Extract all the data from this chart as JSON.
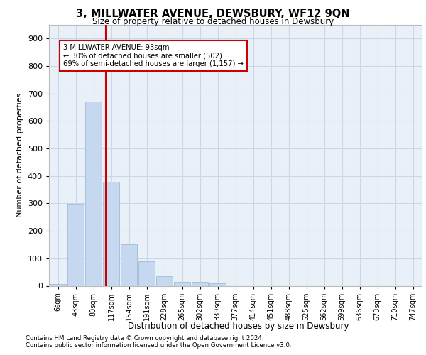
{
  "title": "3, MILLWATER AVENUE, DEWSBURY, WF12 9QN",
  "subtitle": "Size of property relative to detached houses in Dewsbury",
  "xlabel": "Distribution of detached houses by size in Dewsbury",
  "ylabel": "Number of detached properties",
  "bar_labels": [
    "6sqm",
    "43sqm",
    "80sqm",
    "117sqm",
    "154sqm",
    "191sqm",
    "228sqm",
    "265sqm",
    "302sqm",
    "339sqm",
    "377sqm",
    "414sqm",
    "451sqm",
    "488sqm",
    "525sqm",
    "562sqm",
    "599sqm",
    "636sqm",
    "673sqm",
    "710sqm",
    "747sqm"
  ],
  "bar_values": [
    7,
    295,
    670,
    380,
    150,
    88,
    35,
    13,
    13,
    10,
    0,
    0,
    0,
    0,
    0,
    0,
    0,
    0,
    0,
    0,
    0
  ],
  "bar_color": "#c5d8f0",
  "bar_edgecolor": "#a0bcd8",
  "grid_color": "#c8d8e8",
  "background_color": "#ffffff",
  "plot_bg_color": "#eaf0f8",
  "vline_x": 2.7,
  "vline_color": "#cc0000",
  "annotation_text": "3 MILLWATER AVENUE: 93sqm\n← 30% of detached houses are smaller (502)\n69% of semi-detached houses are larger (1,157) →",
  "annotation_box_color": "#ffffff",
  "annotation_box_edgecolor": "#cc0000",
  "ylim": [
    0,
    950
  ],
  "yticks": [
    0,
    100,
    200,
    300,
    400,
    500,
    600,
    700,
    800,
    900
  ],
  "footer_line1": "Contains HM Land Registry data © Crown copyright and database right 2024.",
  "footer_line2": "Contains public sector information licensed under the Open Government Licence v3.0."
}
